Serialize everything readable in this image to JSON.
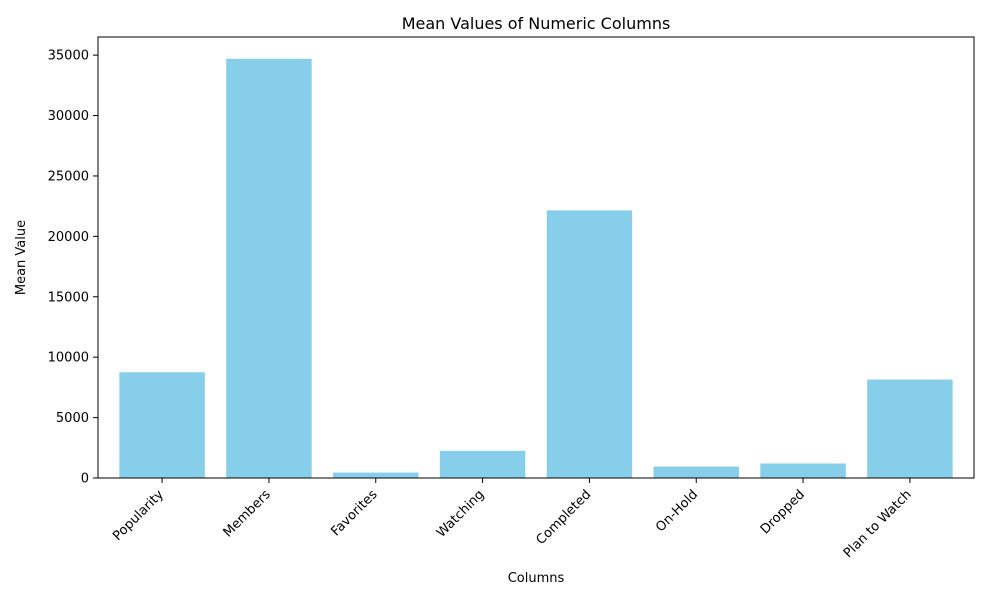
{
  "chart_data": {
    "type": "bar",
    "title": "Mean Values of Numeric Columns",
    "xlabel": "Columns",
    "ylabel": "Mean Value",
    "categories": [
      "Popularity",
      "Members",
      "Favorites",
      "Watching",
      "Completed",
      "On-Hold",
      "Dropped",
      "Plan to Watch"
    ],
    "values": [
      8750,
      34700,
      450,
      2250,
      22150,
      950,
      1200,
      8150
    ],
    "ylim": [
      0,
      36500
    ],
    "yticks": [
      0,
      5000,
      10000,
      15000,
      20000,
      25000,
      30000,
      35000
    ],
    "grid": false,
    "legend": "none",
    "bar_color": "#87ceeb",
    "xtick_rotation": 45
  }
}
